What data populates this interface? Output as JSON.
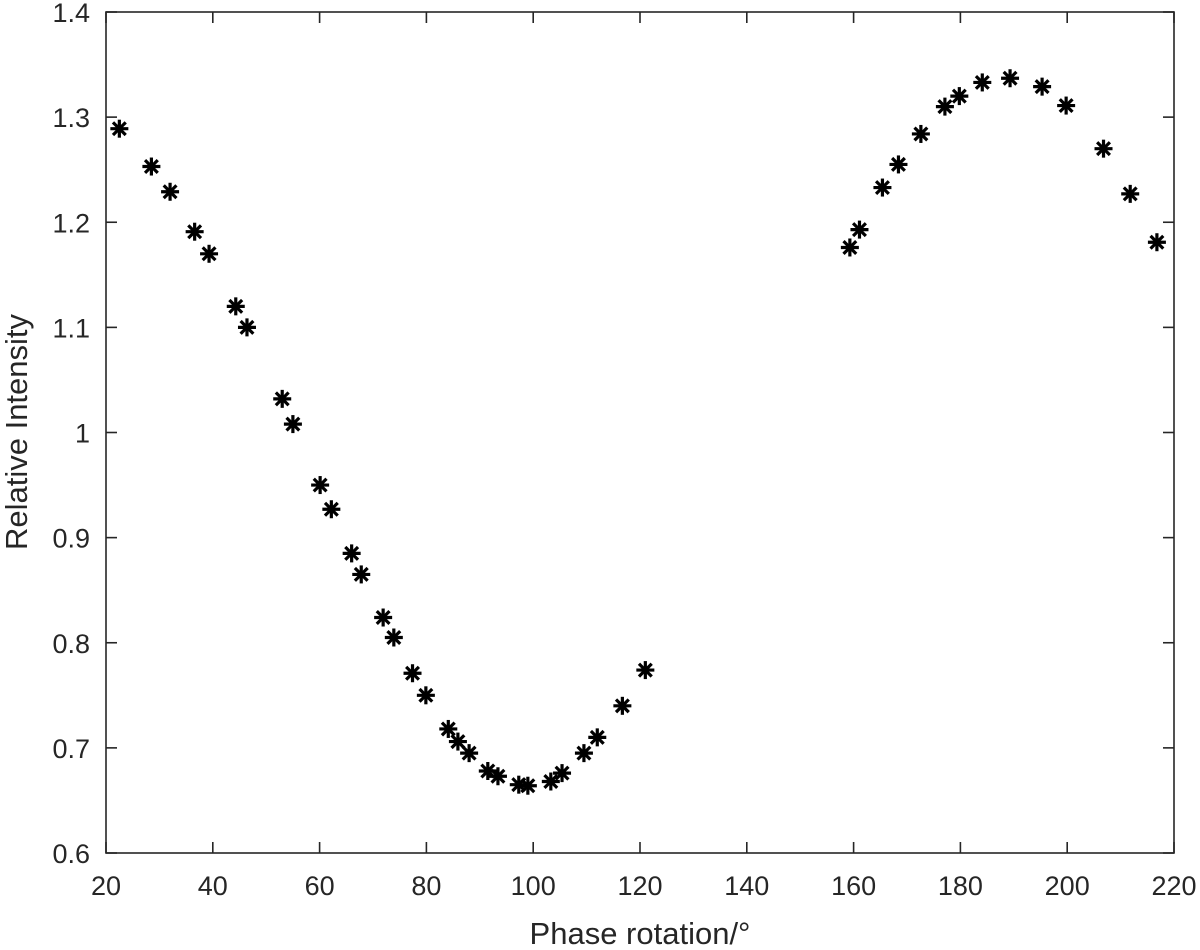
{
  "chart_data": {
    "type": "scatter",
    "xlabel": "Phase rotation/°",
    "ylabel": "Relative Intensity",
    "xlim": [
      20,
      220
    ],
    "ylim": [
      0.6,
      1.4
    ],
    "xticks": [
      "20",
      "40",
      "60",
      "80",
      "100",
      "120",
      "140",
      "160",
      "180",
      "200",
      "220"
    ],
    "yticks": [
      "0.6",
      "0.7",
      "0.8",
      "0.9",
      "1",
      "1.1",
      "1.2",
      "1.3",
      "1.4"
    ],
    "grid": false,
    "marker": "asterisk",
    "color": "#000000",
    "points": [
      {
        "x": 22.5,
        "y": 1.289
      },
      {
        "x": 28.5,
        "y": 1.253
      },
      {
        "x": 32.0,
        "y": 1.229
      },
      {
        "x": 36.6,
        "y": 1.191
      },
      {
        "x": 39.3,
        "y": 1.17
      },
      {
        "x": 44.3,
        "y": 1.12
      },
      {
        "x": 46.4,
        "y": 1.1
      },
      {
        "x": 53.0,
        "y": 1.032
      },
      {
        "x": 55.0,
        "y": 1.008
      },
      {
        "x": 60.1,
        "y": 0.95
      },
      {
        "x": 62.2,
        "y": 0.927
      },
      {
        "x": 66.0,
        "y": 0.885
      },
      {
        "x": 67.8,
        "y": 0.865
      },
      {
        "x": 71.9,
        "y": 0.824
      },
      {
        "x": 73.9,
        "y": 0.805
      },
      {
        "x": 77.4,
        "y": 0.771
      },
      {
        "x": 79.9,
        "y": 0.75
      },
      {
        "x": 84.1,
        "y": 0.718
      },
      {
        "x": 85.9,
        "y": 0.706
      },
      {
        "x": 88.0,
        "y": 0.695
      },
      {
        "x": 91.5,
        "y": 0.678
      },
      {
        "x": 93.4,
        "y": 0.673
      },
      {
        "x": 97.3,
        "y": 0.665
      },
      {
        "x": 99.0,
        "y": 0.664
      },
      {
        "x": 103.3,
        "y": 0.668
      },
      {
        "x": 105.4,
        "y": 0.676
      },
      {
        "x": 109.5,
        "y": 0.695
      },
      {
        "x": 112.0,
        "y": 0.71
      },
      {
        "x": 116.7,
        "y": 0.74
      },
      {
        "x": 121.0,
        "y": 0.774
      },
      {
        "x": 159.3,
        "y": 1.176
      },
      {
        "x": 161.1,
        "y": 1.193
      },
      {
        "x": 165.4,
        "y": 1.233
      },
      {
        "x": 168.4,
        "y": 1.255
      },
      {
        "x": 172.6,
        "y": 1.284
      },
      {
        "x": 177.1,
        "y": 1.31
      },
      {
        "x": 179.8,
        "y": 1.32
      },
      {
        "x": 184.1,
        "y": 1.333
      },
      {
        "x": 189.3,
        "y": 1.337
      },
      {
        "x": 195.3,
        "y": 1.329
      },
      {
        "x": 199.8,
        "y": 1.311
      },
      {
        "x": 206.8,
        "y": 1.27
      },
      {
        "x": 211.8,
        "y": 1.227
      },
      {
        "x": 216.8,
        "y": 1.181
      }
    ]
  }
}
